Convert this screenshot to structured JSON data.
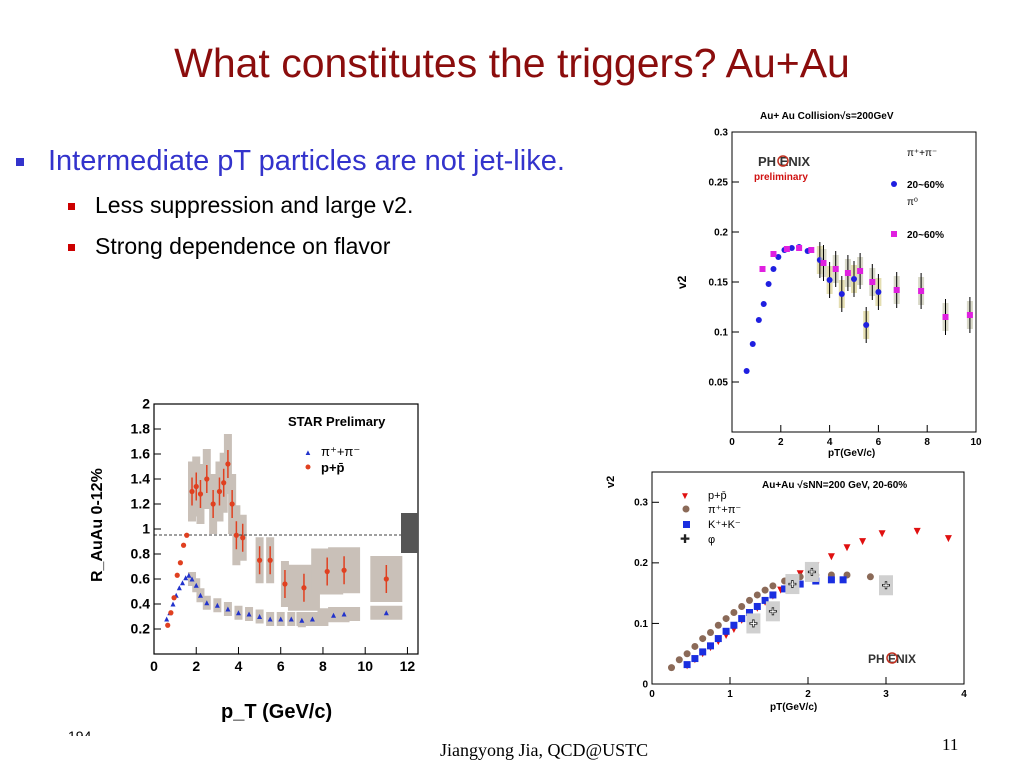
{
  "slide": {
    "title": "What constitutes the triggers? Au+Au",
    "bullet_main": "Intermediate pT particles are not jet-like.",
    "sub_bullets": [
      "Less suppression and large v2.",
      "Strong dependence on flavor"
    ],
    "footer": "Jiangyong Jia,  QCD@USTC",
    "page_number": "11",
    "stub_text": "194"
  },
  "chart_data": [
    {
      "id": "phenix-v2-pion",
      "type": "scatter",
      "title": "Au+ Au Collision√s=200GeV",
      "xlabel": "pT(GeV/c)",
      "ylabel": "v2",
      "xlim": [
        0,
        10
      ],
      "ylim": [
        0,
        0.3
      ],
      "xticks": [
        "0",
        "2",
        "4",
        "6",
        "8",
        "10"
      ],
      "yticks": [
        "0.05",
        "0.1",
        "0.15",
        "0.2",
        "0.25",
        "0.3"
      ],
      "logo": "PH  ENIX",
      "annotation": "preliminary",
      "legend_header_1": "π⁺+π⁻",
      "legend_header_2": "π⁰",
      "series": [
        {
          "name": "20~60%",
          "color": "#1f1fe0",
          "marker": "circle",
          "points": [
            [
              0.6,
              0.061
            ],
            [
              0.85,
              0.088
            ],
            [
              1.1,
              0.112
            ],
            [
              1.3,
              0.128
            ],
            [
              1.5,
              0.148
            ],
            [
              1.7,
              0.163
            ],
            [
              1.9,
              0.175
            ],
            [
              2.15,
              0.182
            ],
            [
              2.45,
              0.184
            ],
            [
              2.75,
              0.185
            ],
            [
              3.1,
              0.181
            ],
            [
              3.6,
              0.172
            ],
            [
              4.0,
              0.152
            ],
            [
              4.5,
              0.138
            ],
            [
              5.0,
              0.153
            ],
            [
              5.5,
              0.107
            ],
            [
              6.0,
              0.14
            ]
          ]
        },
        {
          "name": "20~60%",
          "color": "#e020e0",
          "marker": "square",
          "points": [
            [
              1.25,
              0.163
            ],
            [
              1.7,
              0.178
            ],
            [
              2.25,
              0.183
            ],
            [
              2.75,
              0.184
            ],
            [
              3.25,
              0.182
            ],
            [
              3.75,
              0.169
            ],
            [
              4.25,
              0.163
            ],
            [
              4.75,
              0.159
            ],
            [
              5.25,
              0.161
            ],
            [
              5.75,
              0.15
            ],
            [
              6.75,
              0.142
            ],
            [
              7.75,
              0.141
            ],
            [
              8.75,
              0.115
            ],
            [
              9.75,
              0.117
            ]
          ]
        }
      ]
    },
    {
      "id": "star-raa",
      "type": "scatter",
      "title": "STAR Prelimary",
      "xlabel": "p_T (GeV/c)",
      "ylabel": "R_AuAu 0-12%",
      "xlim": [
        0,
        12.5
      ],
      "ylim": [
        0,
        2
      ],
      "xticks": [
        "0",
        "2",
        "4",
        "6",
        "8",
        "10",
        "12"
      ],
      "yticks": [
        "0.2",
        "0.4",
        "0.6",
        "0.8",
        "1",
        "1.2",
        "1.4",
        "1.6",
        "1.8",
        "2"
      ],
      "series": [
        {
          "name": "π⁺+π⁻",
          "color": "#2233cc",
          "marker": "triangle",
          "points": [
            [
              0.6,
              0.28
            ],
            [
              0.75,
              0.33
            ],
            [
              0.9,
              0.4
            ],
            [
              1.05,
              0.47
            ],
            [
              1.2,
              0.53
            ],
            [
              1.35,
              0.57
            ],
            [
              1.5,
              0.61
            ],
            [
              1.65,
              0.63
            ],
            [
              1.8,
              0.6
            ],
            [
              2.0,
              0.55
            ],
            [
              2.2,
              0.47
            ],
            [
              2.5,
              0.41
            ],
            [
              3.0,
              0.39
            ],
            [
              3.5,
              0.36
            ],
            [
              4.0,
              0.33
            ],
            [
              4.5,
              0.32
            ],
            [
              5.0,
              0.3
            ],
            [
              5.5,
              0.28
            ],
            [
              6.0,
              0.28
            ],
            [
              6.5,
              0.28
            ],
            [
              7.0,
              0.27
            ],
            [
              7.5,
              0.28
            ],
            [
              8.5,
              0.31
            ],
            [
              9.0,
              0.32
            ],
            [
              11.0,
              0.33
            ]
          ]
        },
        {
          "name": "p+p̄",
          "color": "#e04020",
          "marker": "circle",
          "points": [
            [
              0.65,
              0.23
            ],
            [
              0.8,
              0.33
            ],
            [
              0.95,
              0.45
            ],
            [
              1.1,
              0.63
            ],
            [
              1.25,
              0.73
            ],
            [
              1.4,
              0.87
            ],
            [
              1.55,
              0.95
            ],
            [
              1.8,
              1.3
            ],
            [
              2.0,
              1.34
            ],
            [
              2.2,
              1.28
            ],
            [
              2.5,
              1.4
            ],
            [
              2.8,
              1.2
            ],
            [
              3.1,
              1.3
            ],
            [
              3.3,
              1.37
            ],
            [
              3.5,
              1.52
            ],
            [
              3.7,
              1.2
            ],
            [
              3.9,
              0.95
            ],
            [
              4.2,
              0.93
            ],
            [
              5.0,
              0.75
            ],
            [
              5.5,
              0.75
            ],
            [
              6.2,
              0.56
            ],
            [
              7.1,
              0.53
            ],
            [
              8.2,
              0.66
            ],
            [
              9.0,
              0.67
            ],
            [
              11.0,
              0.6
            ]
          ]
        }
      ],
      "reference_line": 1.0
    },
    {
      "id": "phenix-v2-flavor",
      "type": "scatter",
      "title": "Au+Au √sNN=200 GeV, 20-60%",
      "xlabel": "pT(GeV/c)",
      "ylabel": "v2",
      "xlim": [
        0,
        4
      ],
      "ylim": [
        0,
        0.35
      ],
      "xticks": [
        "0",
        "1",
        "2",
        "3",
        "4"
      ],
      "yticks": [
        "0",
        "0.1",
        "0.2",
        "0.3"
      ],
      "logo": "PH  ENIX",
      "series": [
        {
          "name": "p+p̄",
          "color": "#e01010",
          "marker": "triangle-down",
          "points": [
            [
              0.45,
              0.03
            ],
            [
              0.55,
              0.04
            ],
            [
              0.65,
              0.05
            ],
            [
              0.75,
              0.06
            ],
            [
              0.85,
              0.07
            ],
            [
              0.95,
              0.08
            ],
            [
              1.05,
              0.09
            ],
            [
              1.15,
              0.105
            ],
            [
              1.25,
              0.115
            ],
            [
              1.35,
              0.125
            ],
            [
              1.45,
              0.135
            ],
            [
              1.55,
              0.145
            ],
            [
              1.65,
              0.155
            ],
            [
              1.75,
              0.17
            ],
            [
              1.9,
              0.182
            ],
            [
              2.1,
              0.195
            ],
            [
              2.3,
              0.21
            ],
            [
              2.5,
              0.225
            ],
            [
              2.7,
              0.235
            ],
            [
              2.95,
              0.248
            ],
            [
              3.4,
              0.252
            ],
            [
              3.8,
              0.24
            ]
          ]
        },
        {
          "name": "π⁺+π⁻",
          "color": "#8b6a58",
          "marker": "circle",
          "points": [
            [
              0.25,
              0.027
            ],
            [
              0.35,
              0.04
            ],
            [
              0.45,
              0.05
            ],
            [
              0.55,
              0.062
            ],
            [
              0.65,
              0.075
            ],
            [
              0.75,
              0.085
            ],
            [
              0.85,
              0.097
            ],
            [
              0.95,
              0.108
            ],
            [
              1.05,
              0.118
            ],
            [
              1.15,
              0.128
            ],
            [
              1.25,
              0.138
            ],
            [
              1.35,
              0.147
            ],
            [
              1.45,
              0.155
            ],
            [
              1.55,
              0.162
            ],
            [
              1.7,
              0.17
            ],
            [
              1.9,
              0.177
            ],
            [
              2.1,
              0.18
            ],
            [
              2.3,
              0.18
            ],
            [
              2.5,
              0.18
            ],
            [
              2.8,
              0.177
            ]
          ]
        },
        {
          "name": "K⁺+K⁻",
          "color": "#1a2ee0",
          "marker": "square",
          "points": [
            [
              0.45,
              0.032
            ],
            [
              0.55,
              0.042
            ],
            [
              0.65,
              0.053
            ],
            [
              0.75,
              0.063
            ],
            [
              0.85,
              0.075
            ],
            [
              0.95,
              0.087
            ],
            [
              1.05,
              0.097
            ],
            [
              1.15,
              0.108
            ],
            [
              1.25,
              0.118
            ],
            [
              1.35,
              0.128
            ],
            [
              1.45,
              0.138
            ],
            [
              1.55,
              0.147
            ],
            [
              1.7,
              0.157
            ],
            [
              1.9,
              0.165
            ],
            [
              2.1,
              0.17
            ],
            [
              2.3,
              0.172
            ],
            [
              2.45,
              0.172
            ]
          ]
        },
        {
          "name": "φ",
          "color": "#222222",
          "marker": "cross",
          "points": [
            [
              1.3,
              0.1
            ],
            [
              1.55,
              0.12
            ],
            [
              1.8,
              0.165
            ],
            [
              2.05,
              0.185
            ],
            [
              3.0,
              0.163
            ]
          ]
        }
      ]
    }
  ]
}
